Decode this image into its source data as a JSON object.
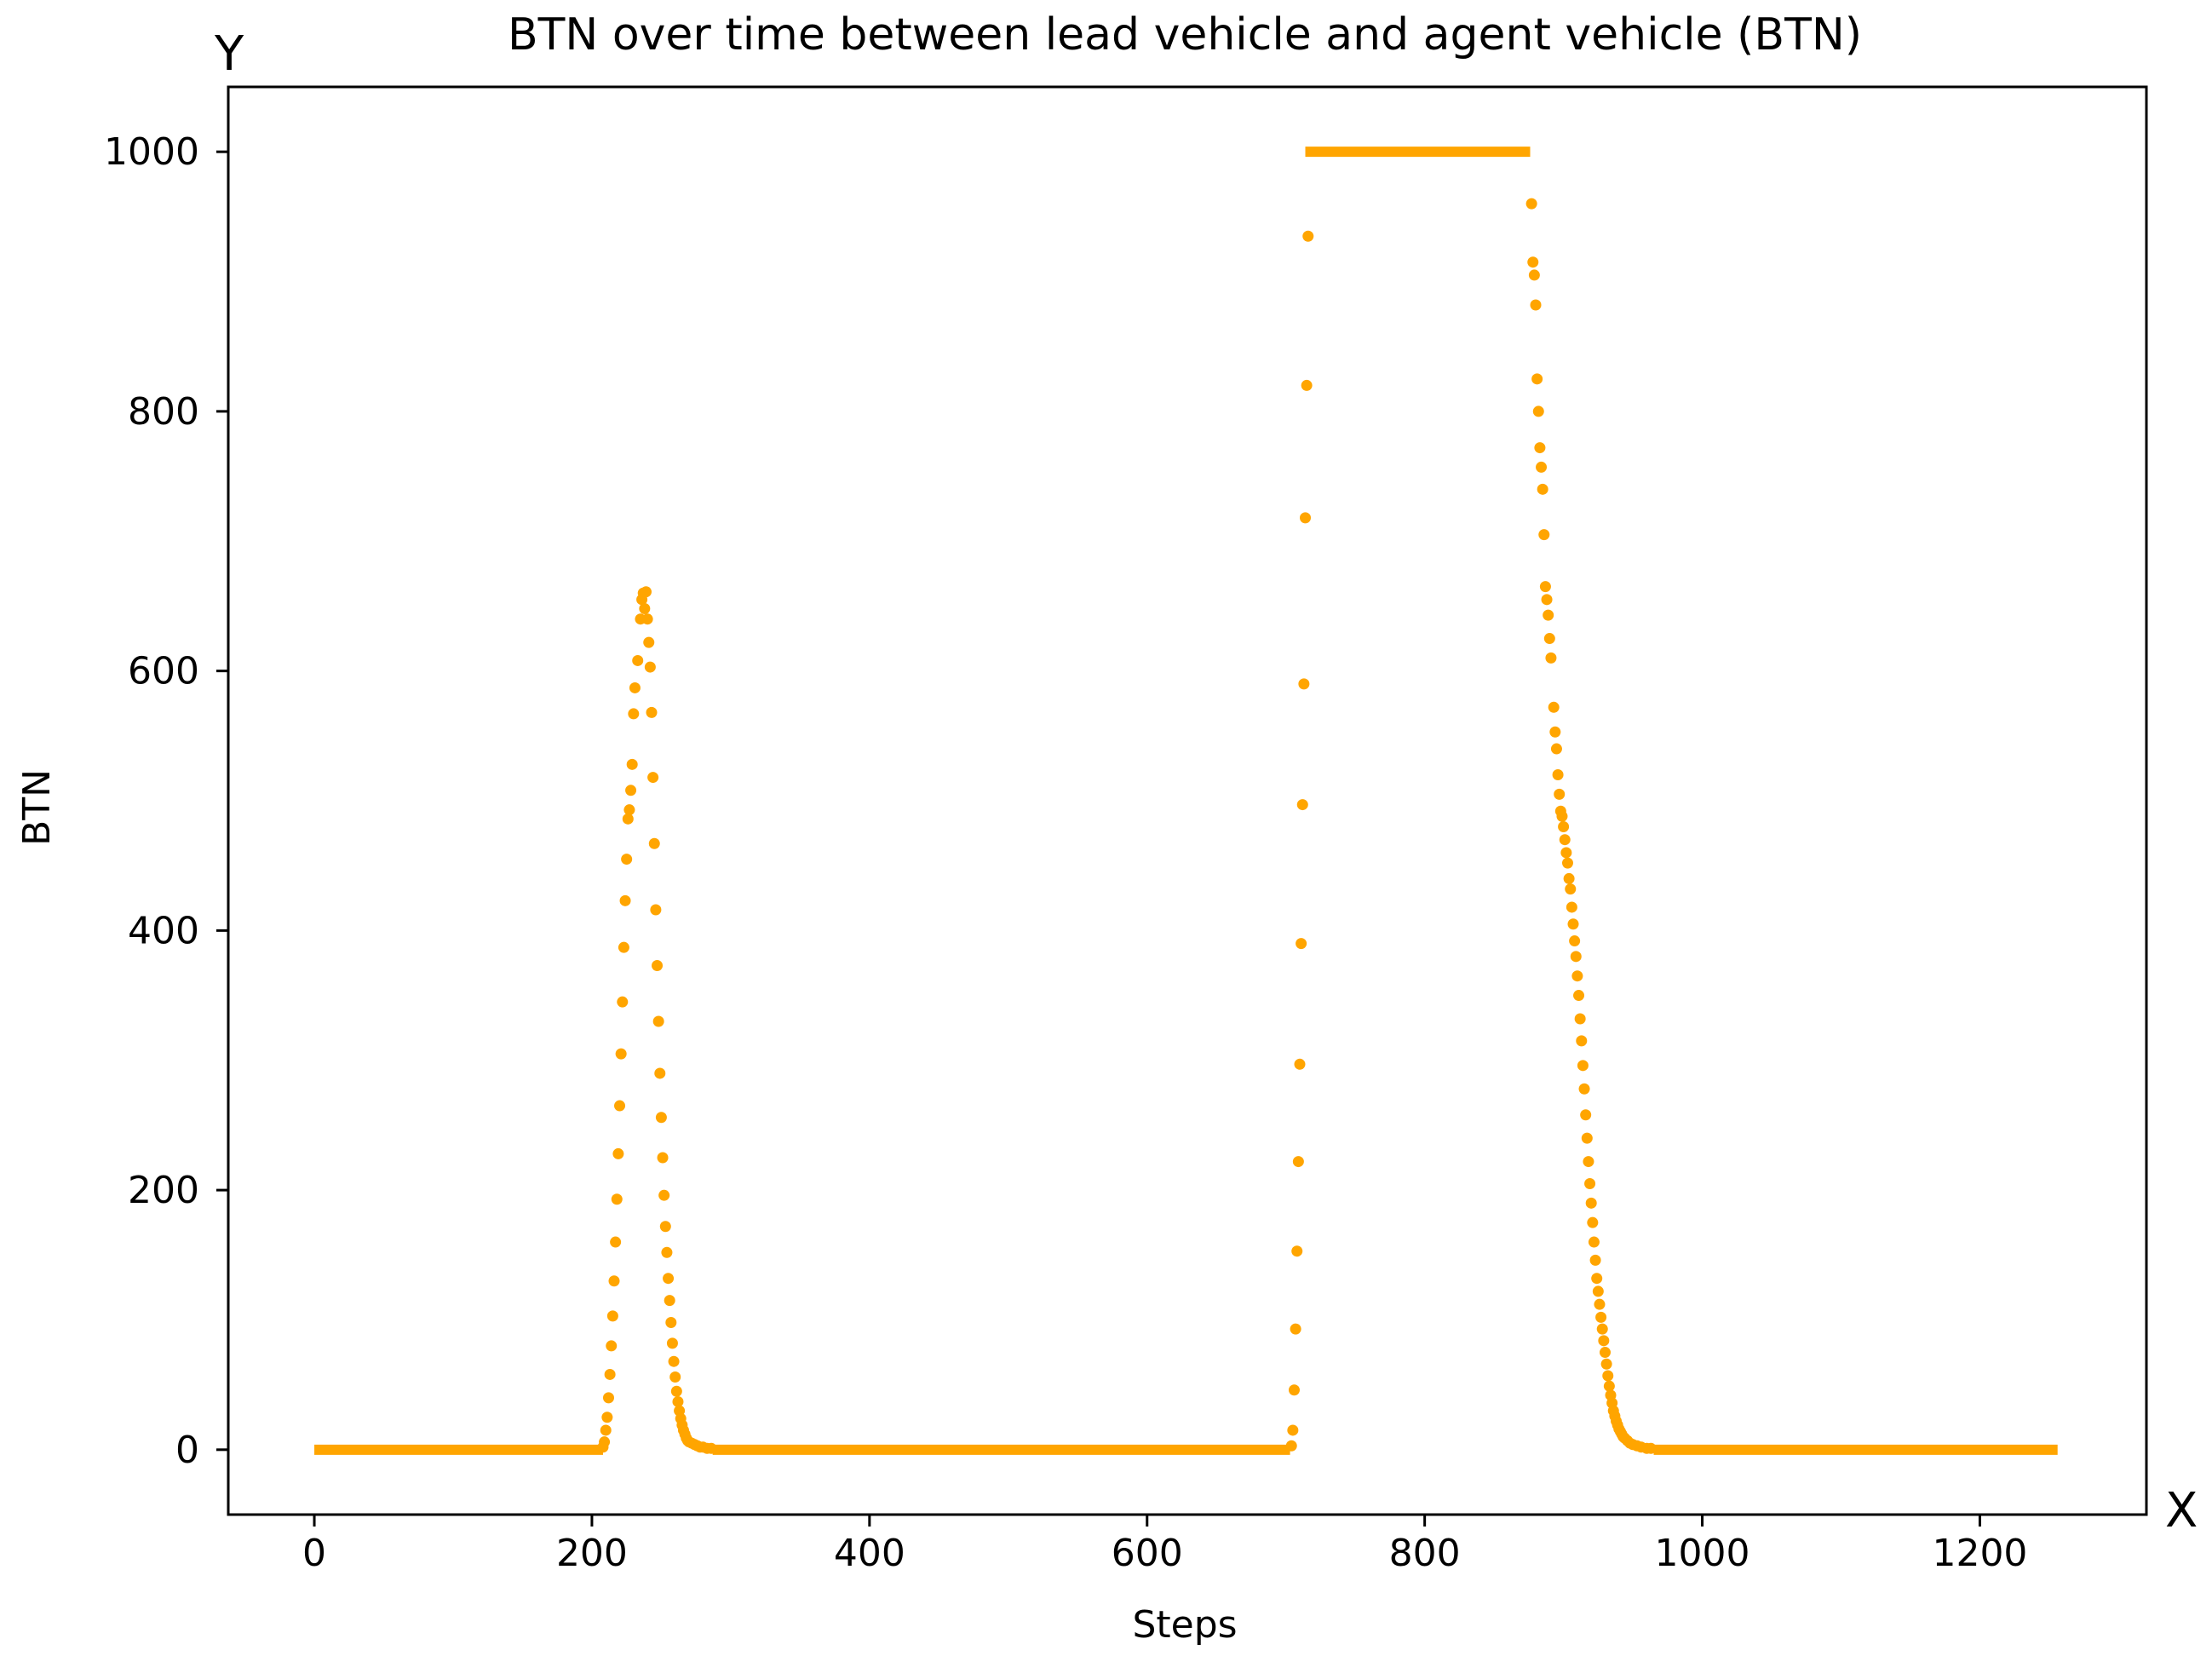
{
  "chart_data": {
    "type": "scatter",
    "title": "BTN over time between lead vehicle and agent vehicle (BTN)",
    "xlabel": "Steps",
    "ylabel": "BTN",
    "x_axis_marker": "X",
    "y_axis_marker": "Y",
    "xlim": [
      -62,
      1320
    ],
    "ylim": [
      -50,
      1050
    ],
    "xticks": [
      0,
      200,
      400,
      600,
      800,
      1000,
      1200
    ],
    "yticks": [
      0,
      200,
      400,
      600,
      800,
      1000
    ],
    "grid": false,
    "legend": "none",
    "marker_color": "#FFA500",
    "series": [
      {
        "segments": [
          {
            "x_start": 0,
            "x_end": 208,
            "y": 0
          },
          {
            "x_start": 287,
            "x_end": 703,
            "y": 0
          },
          {
            "x_start": 714,
            "x_end": 876,
            "y": 1000
          },
          {
            "x_start": 965,
            "x_end": 1256,
            "y": 0
          }
        ],
        "points": [
          [
            208,
            2
          ],
          [
            209,
            6
          ],
          [
            210,
            15
          ],
          [
            211,
            25
          ],
          [
            212,
            40
          ],
          [
            213,
            58
          ],
          [
            214,
            80
          ],
          [
            215,
            103
          ],
          [
            216,
            130
          ],
          [
            217,
            160
          ],
          [
            218,
            193
          ],
          [
            219,
            228
          ],
          [
            220,
            265
          ],
          [
            221,
            305
          ],
          [
            222,
            345
          ],
          [
            223,
            387
          ],
          [
            224,
            423
          ],
          [
            225,
            455
          ],
          [
            226,
            486
          ],
          [
            227,
            493
          ],
          [
            228,
            508
          ],
          [
            229,
            528
          ],
          [
            230,
            567
          ],
          [
            231,
            587
          ],
          [
            233,
            608
          ],
          [
            235,
            640
          ],
          [
            236,
            655
          ],
          [
            237,
            660
          ],
          [
            238,
            648
          ],
          [
            239,
            661
          ],
          [
            240,
            640
          ],
          [
            241,
            622
          ],
          [
            242,
            603
          ],
          [
            243,
            568
          ],
          [
            244,
            518
          ],
          [
            245,
            467
          ],
          [
            246,
            416
          ],
          [
            247,
            373
          ],
          [
            248,
            330
          ],
          [
            249,
            290
          ],
          [
            250,
            256
          ],
          [
            251,
            225
          ],
          [
            252,
            196
          ],
          [
            253,
            172
          ],
          [
            254,
            152
          ],
          [
            255,
            132
          ],
          [
            256,
            115
          ],
          [
            257,
            98
          ],
          [
            258,
            82
          ],
          [
            259,
            68
          ],
          [
            260,
            56
          ],
          [
            261,
            45
          ],
          [
            262,
            37
          ],
          [
            263,
            30
          ],
          [
            264,
            24
          ],
          [
            265,
            19
          ],
          [
            266,
            15
          ],
          [
            267,
            12
          ],
          [
            268,
            9
          ],
          [
            269,
            7
          ],
          [
            270,
            6
          ],
          [
            272,
            5
          ],
          [
            274,
            4
          ],
          [
            276,
            3
          ],
          [
            278,
            2
          ],
          [
            280,
            2
          ],
          [
            283,
            1
          ],
          [
            286,
            1
          ],
          [
            704,
            3
          ],
          [
            705,
            15
          ],
          [
            706,
            46
          ],
          [
            707,
            93
          ],
          [
            708,
            153
          ],
          [
            709,
            222
          ],
          [
            710,
            297
          ],
          [
            711,
            390
          ],
          [
            712,
            497
          ],
          [
            713,
            590
          ],
          [
            714,
            718
          ],
          [
            715,
            820
          ],
          [
            716,
            935
          ],
          [
            877,
            960
          ],
          [
            878,
            915
          ],
          [
            879,
            905
          ],
          [
            880,
            882
          ],
          [
            881,
            825
          ],
          [
            882,
            800
          ],
          [
            883,
            772
          ],
          [
            884,
            757
          ],
          [
            885,
            740
          ],
          [
            886,
            705
          ],
          [
            887,
            665
          ],
          [
            888,
            655
          ],
          [
            889,
            643
          ],
          [
            890,
            625
          ],
          [
            891,
            610
          ],
          [
            893,
            572
          ],
          [
            894,
            553
          ],
          [
            895,
            540
          ],
          [
            896,
            520
          ],
          [
            897,
            505
          ],
          [
            898,
            492
          ],
          [
            899,
            488
          ],
          [
            900,
            480
          ],
          [
            901,
            470
          ],
          [
            902,
            460
          ],
          [
            903,
            452
          ],
          [
            904,
            440
          ],
          [
            905,
            432
          ],
          [
            906,
            418
          ],
          [
            907,
            405
          ],
          [
            908,
            392
          ],
          [
            909,
            380
          ],
          [
            910,
            365
          ],
          [
            911,
            350
          ],
          [
            912,
            332
          ],
          [
            913,
            315
          ],
          [
            914,
            296
          ],
          [
            915,
            278
          ],
          [
            916,
            258
          ],
          [
            917,
            240
          ],
          [
            918,
            222
          ],
          [
            919,
            205
          ],
          [
            920,
            190
          ],
          [
            921,
            175
          ],
          [
            922,
            160
          ],
          [
            923,
            146
          ],
          [
            924,
            132
          ],
          [
            925,
            122
          ],
          [
            926,
            112
          ],
          [
            927,
            102
          ],
          [
            928,
            93
          ],
          [
            929,
            84
          ],
          [
            930,
            75
          ],
          [
            931,
            66
          ],
          [
            932,
            57
          ],
          [
            933,
            49
          ],
          [
            934,
            42
          ],
          [
            935,
            36
          ],
          [
            936,
            30
          ],
          [
            937,
            26
          ],
          [
            938,
            22
          ],
          [
            939,
            19
          ],
          [
            940,
            16
          ],
          [
            941,
            14
          ],
          [
            942,
            12
          ],
          [
            943,
            10
          ],
          [
            944,
            9
          ],
          [
            946,
            7
          ],
          [
            948,
            5
          ],
          [
            950,
            4
          ],
          [
            953,
            3
          ],
          [
            956,
            2
          ],
          [
            960,
            1
          ],
          [
            963,
            1
          ]
        ]
      }
    ]
  }
}
